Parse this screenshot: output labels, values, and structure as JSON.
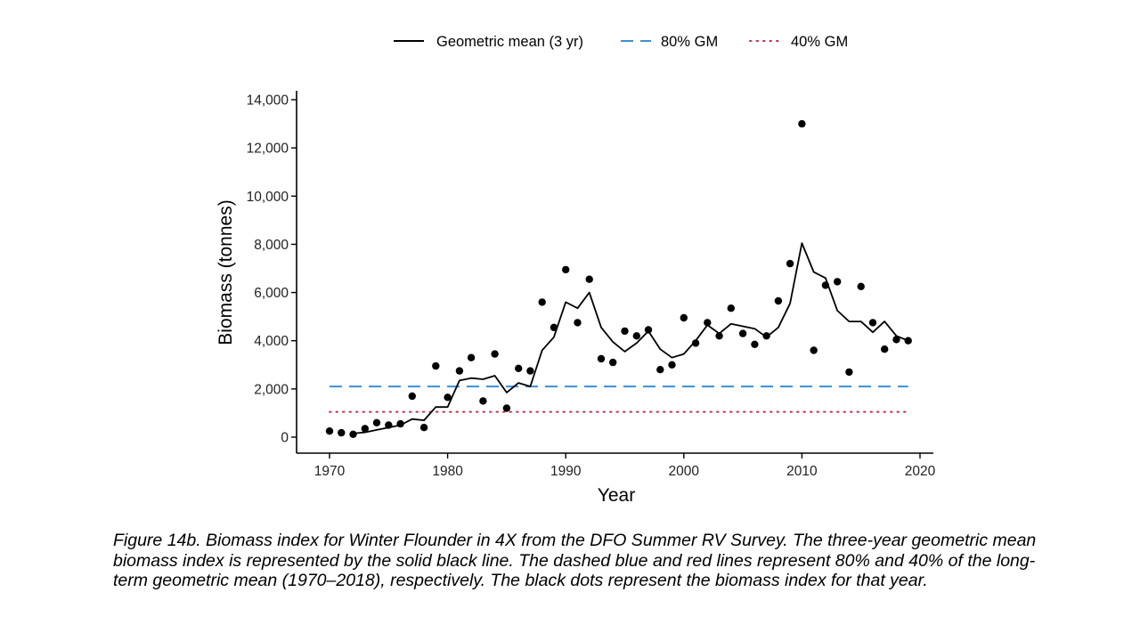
{
  "chart_data": {
    "type": "line",
    "xlabel": "Year",
    "ylabel": "Biomass (tonnes)",
    "xlim": [
      1970,
      2020
    ],
    "ylim": [
      0,
      14000
    ],
    "x_ticks": [
      1970,
      1980,
      1990,
      2000,
      2010,
      2020
    ],
    "y_ticks": [
      0,
      2000,
      4000,
      6000,
      8000,
      10000,
      12000,
      14000
    ],
    "x_tick_labels": [
      "1970",
      "1980",
      "1990",
      "2000",
      "2010",
      "2020"
    ],
    "y_tick_labels": [
      "0",
      "2,000",
      "4,000",
      "6,000",
      "8,000",
      "10,000",
      "12,000",
      "14,000"
    ],
    "grid": false,
    "legend_position": "top-center",
    "legend": [
      {
        "label": "Geometric mean (3 yr)",
        "style": "solid",
        "color": "#000000"
      },
      {
        "label": "80% GM",
        "style": "dashed",
        "color": "#3b8fd6"
      },
      {
        "label": "40% GM",
        "style": "dotted",
        "color": "#c0334d"
      }
    ],
    "points": {
      "x": [
        1970,
        1971,
        1972,
        1973,
        1974,
        1975,
        1976,
        1977,
        1978,
        1979,
        1980,
        1981,
        1982,
        1983,
        1984,
        1985,
        1986,
        1987,
        1988,
        1989,
        1990,
        1991,
        1992,
        1993,
        1994,
        1995,
        1996,
        1997,
        1998,
        1999,
        2000,
        2001,
        2002,
        2003,
        2004,
        2005,
        2006,
        2007,
        2008,
        2009,
        2010,
        2011,
        2012,
        2013,
        2014,
        2015,
        2016,
        2017,
        2018,
        2019
      ],
      "y": [
        250,
        180,
        120,
        350,
        600,
        500,
        550,
        1700,
        400,
        2950,
        1650,
        2750,
        3300,
        1500,
        3450,
        1200,
        2850,
        2750,
        5600,
        4550,
        6950,
        4750,
        6550,
        3250,
        3100,
        4400,
        4200,
        4450,
        2800,
        3000,
        4950,
        3900,
        4750,
        4200,
        5350,
        4300,
        3850,
        4200,
        5650,
        7200,
        13000,
        3600,
        6300,
        6450,
        2700,
        6250,
        4750,
        3650,
        4050,
        4000
      ]
    },
    "series": [
      {
        "name": "Geometric mean (3 yr)",
        "x": [
          1972,
          1973,
          1974,
          1975,
          1976,
          1977,
          1978,
          1979,
          1980,
          1981,
          1982,
          1983,
          1984,
          1985,
          1986,
          1987,
          1988,
          1989,
          1990,
          1991,
          1992,
          1993,
          1994,
          1995,
          1996,
          1997,
          1998,
          1999,
          2000,
          2001,
          2002,
          2003,
          2004,
          2005,
          2006,
          2007,
          2008,
          2009,
          2010,
          2011,
          2012,
          2013,
          2014,
          2015,
          2016,
          2017,
          2018,
          2019
        ],
        "y": [
          150,
          200,
          300,
          400,
          500,
          750,
          700,
          1250,
          1250,
          2350,
          2450,
          2400,
          2550,
          1850,
          2250,
          2100,
          3600,
          4150,
          5600,
          5350,
          6000,
          4550,
          3950,
          3550,
          3900,
          4400,
          3650,
          3300,
          3450,
          4000,
          4650,
          4300,
          4700,
          4600,
          4500,
          4150,
          4550,
          5550,
          8050,
          6850,
          6600,
          5250,
          4800,
          4800,
          4350,
          4800,
          4200,
          4000
        ]
      }
    ],
    "hlines": [
      {
        "name": "80% GM",
        "value": 2100,
        "x": [
          1970,
          2019
        ]
      },
      {
        "name": "40% GM",
        "value": 1050,
        "x": [
          1970,
          2019
        ]
      }
    ]
  },
  "caption": "Figure 14b. Biomass index for Winter Flounder in 4X from the DFO Summer RV Survey. The three-year geometric mean biomass index is represented by the solid black line. The dashed blue and red lines represent 80% and 40% of the long-term geometric mean (1970–2018), respectively. The black dots represent the biomass index for that year."
}
